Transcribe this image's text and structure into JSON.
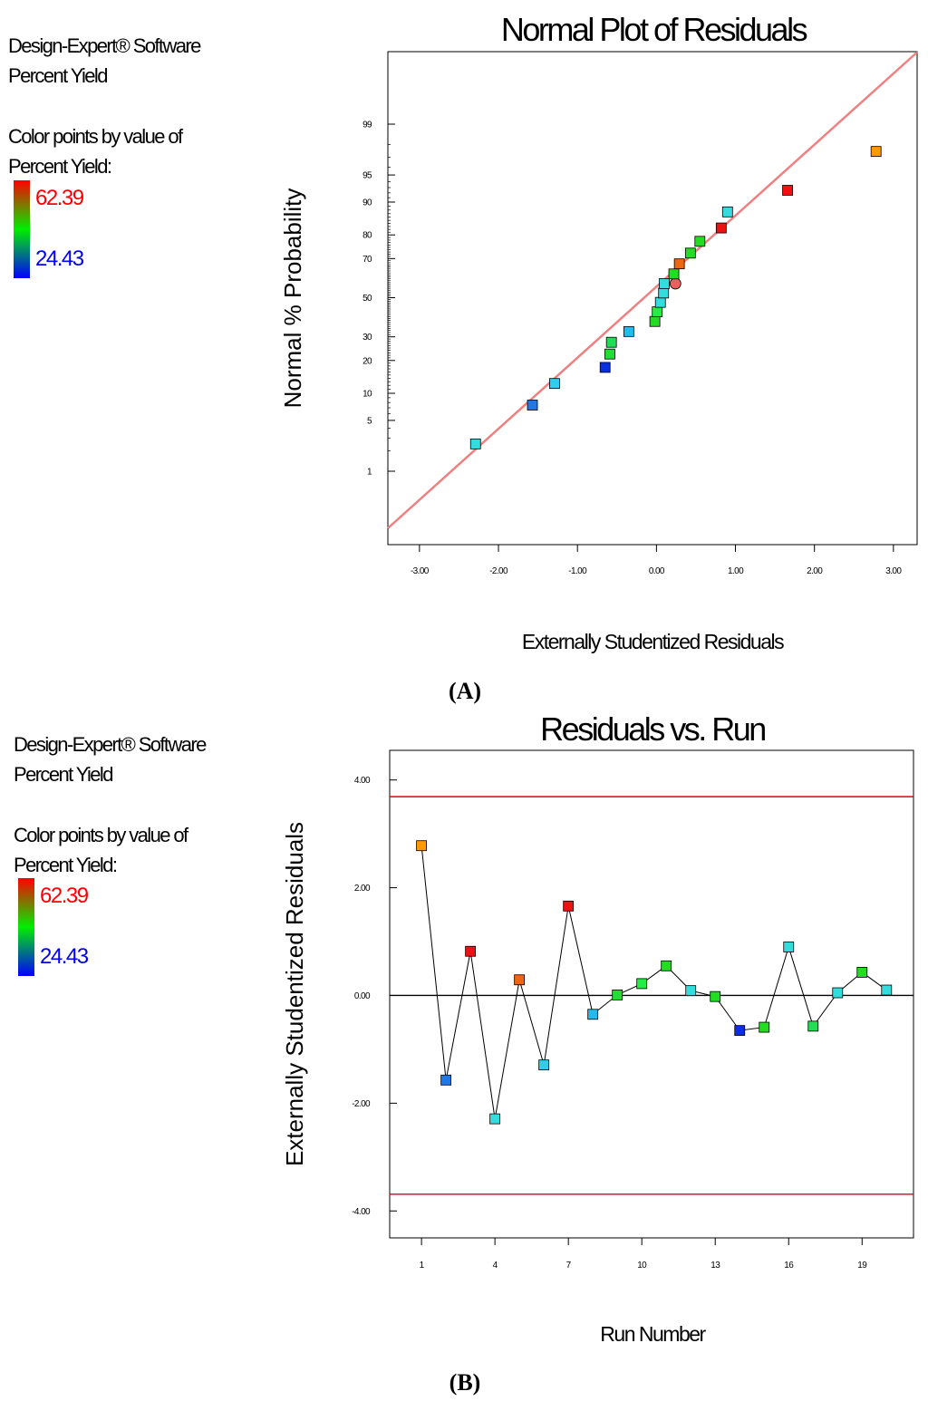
{
  "colors": {
    "fit_line": "#f08080",
    "limit_line": "#e00000",
    "zero_line": "#000000",
    "scale_high": "#ff0000",
    "scale_mid": "#00ee00",
    "scale_low": "#0000ff"
  },
  "panel_a": {
    "side": {
      "line1": "Design-Expert® Software",
      "line2": "Percent Yield",
      "line3": "Color points by value of",
      "line4": "Percent Yield:",
      "high": "62.39",
      "low": "24.43"
    },
    "label": "(A)"
  },
  "panel_b": {
    "side": {
      "line1": "Design-Expert® Software",
      "line2": "Percent Yield",
      "line3": "Color points by value of",
      "line4": "Percent Yield:",
      "high": "62.39",
      "low": "24.43"
    },
    "label": "(B)"
  },
  "chart_data": [
    {
      "type": "scatter",
      "title": "Normal Plot of Residuals",
      "xlabel": "Externally Studentized Residuals",
      "ylabel": "Normal % Probability",
      "xlim": [
        -3.4,
        3.3
      ],
      "x_ticks": [
        -3,
        -2,
        -1,
        0,
        1,
        2,
        3
      ],
      "x_tick_labels": [
        "-3.00",
        "-2.00",
        "-1.00",
        "0.00",
        "1.00",
        "2.00",
        "3.00"
      ],
      "y_ticks": [
        1,
        5,
        10,
        20,
        30,
        50,
        70,
        80,
        90,
        95,
        99
      ],
      "y_tick_labels": [
        "1",
        "5",
        "10",
        "20",
        "30",
        "50",
        "70",
        "80",
        "90",
        "95",
        "99"
      ],
      "y_scale": "normal-probability",
      "fit_line": {
        "x": [
          -3.4,
          3.3
        ],
        "p": [
          0.1,
          99.95
        ]
      },
      "points": [
        {
          "x": -2.29,
          "p": 2.5,
          "color": "#33dddd",
          "shape": "square"
        },
        {
          "x": -1.57,
          "p": 7.5,
          "color": "#1e78e6",
          "shape": "square"
        },
        {
          "x": -1.29,
          "p": 12.5,
          "color": "#33ccee",
          "shape": "square"
        },
        {
          "x": -0.65,
          "p": 17.5,
          "color": "#0a2ee0",
          "shape": "square"
        },
        {
          "x": -0.59,
          "p": 22.5,
          "color": "#22dd33",
          "shape": "square"
        },
        {
          "x": -0.57,
          "p": 27.5,
          "color": "#22dd55",
          "shape": "square"
        },
        {
          "x": -0.35,
          "p": 32.5,
          "color": "#22bbee",
          "shape": "square"
        },
        {
          "x": -0.02,
          "p": 37.5,
          "color": "#22dd22",
          "shape": "square"
        },
        {
          "x": 0.01,
          "p": 42.5,
          "color": "#22ee44",
          "shape": "square"
        },
        {
          "x": 0.05,
          "p": 47.5,
          "color": "#33dddd",
          "shape": "square"
        },
        {
          "x": 0.09,
          "p": 52.5,
          "color": "#33dddd",
          "shape": "square"
        },
        {
          "x": 0.1,
          "p": 57.5,
          "color": "#33dddd",
          "shape": "square"
        },
        {
          "x": 0.24,
          "p": 57.5,
          "color": "#e86060",
          "shape": "circle"
        },
        {
          "x": 0.22,
          "p": 62.5,
          "color": "#22dd22",
          "shape": "square"
        },
        {
          "x": 0.29,
          "p": 67.5,
          "color": "#ee6611",
          "shape": "square"
        },
        {
          "x": 0.43,
          "p": 72.5,
          "color": "#22dd22",
          "shape": "square"
        },
        {
          "x": 0.55,
          "p": 77.5,
          "color": "#22dd22",
          "shape": "square"
        },
        {
          "x": 0.82,
          "p": 82.5,
          "color": "#ee1111",
          "shape": "square"
        },
        {
          "x": 0.9,
          "p": 87.5,
          "color": "#33dddd",
          "shape": "square"
        },
        {
          "x": 1.66,
          "p": 92.5,
          "color": "#ee1111",
          "shape": "square"
        },
        {
          "x": 2.78,
          "p": 97.5,
          "color": "#ff9900",
          "shape": "square"
        }
      ]
    },
    {
      "type": "line",
      "title": "Residuals vs. Run",
      "xlabel": "Run Number",
      "ylabel": "Externally Studentized Residuals",
      "xlim": [
        -0.3,
        21.1
      ],
      "ylim": [
        -4.5,
        4.55
      ],
      "x_ticks": [
        1,
        4,
        7,
        10,
        13,
        16,
        19
      ],
      "x_tick_labels": [
        "1",
        "4",
        "7",
        "10",
        "13",
        "16",
        "19"
      ],
      "y_ticks": [
        -4,
        -2,
        0,
        2,
        4
      ],
      "y_tick_labels": [
        "-4.00",
        "-2.00",
        "0.00",
        "2.00",
        "4.00"
      ],
      "limit_lines": [
        3.69,
        -3.69
      ],
      "zero_line": 0,
      "runs": [
        1,
        2,
        3,
        4,
        5,
        6,
        7,
        8,
        9,
        10,
        11,
        12,
        13,
        14,
        15,
        16,
        17,
        18,
        19,
        20
      ],
      "residuals": [
        2.78,
        -1.57,
        0.82,
        -2.29,
        0.29,
        -1.29,
        1.66,
        -0.35,
        0.01,
        0.22,
        0.55,
        0.09,
        -0.02,
        -0.65,
        -0.59,
        0.9,
        -0.57,
        0.05,
        0.43,
        0.1
      ],
      "point_colors": [
        "#ff9900",
        "#1e78e6",
        "#ee1111",
        "#33dddd",
        "#ee6611",
        "#33ccee",
        "#ee1111",
        "#22bbee",
        "#22dd33",
        "#22ee44",
        "#22dd22",
        "#33dddd",
        "#22dd22",
        "#0a2ee0",
        "#22dd22",
        "#33dddd",
        "#22dd55",
        "#33dddd",
        "#22dd22",
        "#33dddd"
      ]
    }
  ]
}
